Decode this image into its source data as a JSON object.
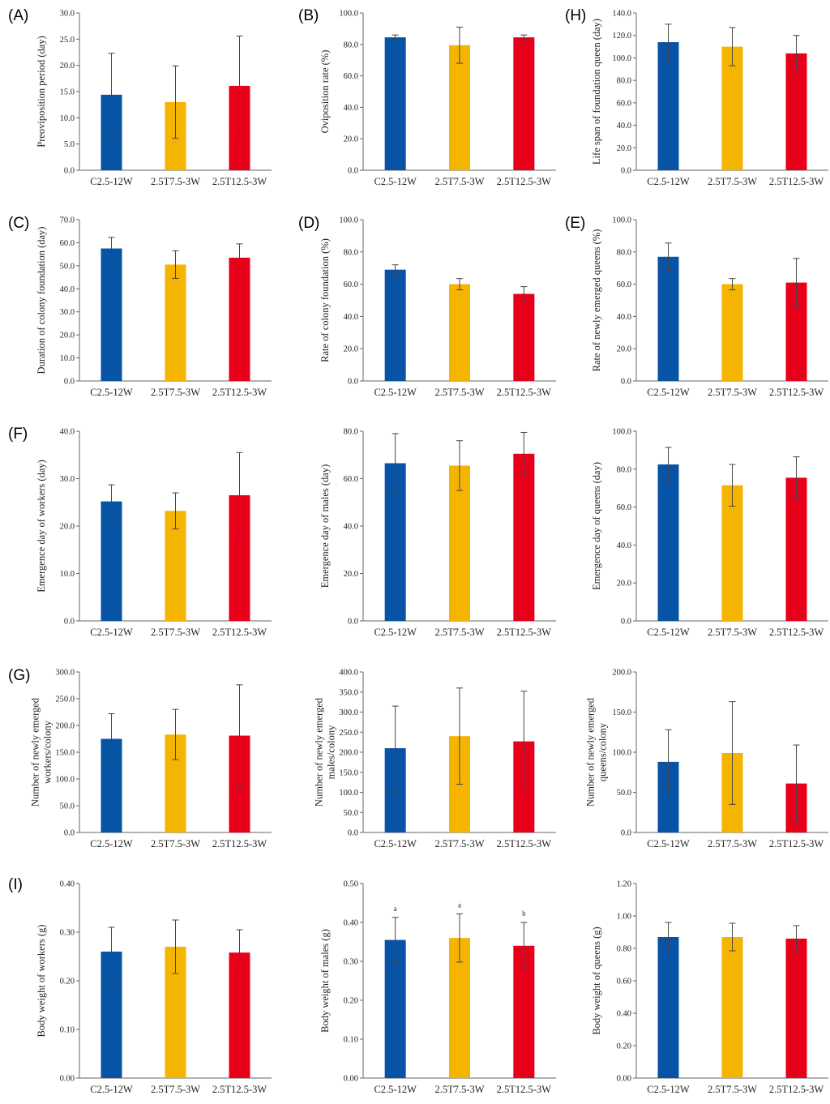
{
  "figure": {
    "categories": [
      "C2.5-12W",
      "2.5T7.5-3W",
      "2.5T12.5-3W"
    ],
    "colors": [
      "#0753a6",
      "#f5b400",
      "#e8001b"
    ],
    "charts": [
      {
        "letter": "(A)",
        "ylabel": [
          "Preoviposition period (day)"
        ],
        "ylim": [
          0,
          30
        ],
        "step": 5,
        "decimals": 1,
        "values": [
          14.4,
          13.0,
          16.1
        ],
        "errors": [
          7.9,
          6.9,
          9.5
        ],
        "letters": []
      },
      {
        "letter": "(B)",
        "ylabel": [
          "Oviposition rate (%)"
        ],
        "ylim": [
          0,
          100
        ],
        "step": 20,
        "decimals": 1,
        "values": [
          84.5,
          79.5,
          84.5
        ],
        "errors": [
          1.5,
          11.5,
          1.5
        ],
        "letters": []
      },
      {
        "letter": "(H)",
        "ylabel": [
          "Life span of foundation queen (day)"
        ],
        "ylim": [
          0,
          140
        ],
        "step": 20,
        "decimals": 1,
        "values": [
          114,
          110,
          104
        ],
        "errors": [
          16,
          17,
          16
        ],
        "letters": []
      },
      {
        "letter": "(C)",
        "ylabel": [
          "Duration of colony foundation (day)"
        ],
        "ylim": [
          0,
          70
        ],
        "step": 10,
        "decimals": 1,
        "values": [
          57.5,
          50.5,
          53.5
        ],
        "errors": [
          4.8,
          6.0,
          6.0
        ],
        "letters": []
      },
      {
        "letter": "(D)",
        "ylabel": [
          "Rate of colony foundation (%)"
        ],
        "ylim": [
          0,
          100
        ],
        "step": 20,
        "decimals": 1,
        "values": [
          69,
          60,
          54
        ],
        "errors": [
          3.0,
          3.5,
          4.5
        ],
        "letters": []
      },
      {
        "letter": "(E)",
        "ylabel": [
          "Rate of newly emerged queens (%)"
        ],
        "ylim": [
          0,
          100
        ],
        "step": 20,
        "decimals": 1,
        "values": [
          77,
          60,
          61
        ],
        "errors": [
          8.5,
          3.5,
          15
        ],
        "letters": []
      },
      {
        "letter": "(F)",
        "ylabel": [
          "Emergence day of workers (day)"
        ],
        "ylim": [
          0,
          40
        ],
        "step": 10,
        "decimals": 1,
        "values": [
          25.2,
          23.2,
          26.5
        ],
        "errors": [
          3.5,
          3.8,
          9.0
        ],
        "letters": []
      },
      {
        "letter": "",
        "ylabel": [
          "Emergence day of males (day)"
        ],
        "ylim": [
          0,
          80
        ],
        "step": 20,
        "decimals": 1,
        "values": [
          66.5,
          65.5,
          70.5
        ],
        "errors": [
          12.5,
          10.5,
          9.0
        ],
        "letters": []
      },
      {
        "letter": "",
        "ylabel": [
          "Emergence day of queens (day)"
        ],
        "ylim": [
          0,
          100
        ],
        "step": 20,
        "decimals": 1,
        "values": [
          82.5,
          71.5,
          75.5
        ],
        "errors": [
          9.0,
          11.0,
          11.0
        ],
        "letters": []
      },
      {
        "letter": "(G)",
        "ylabel": [
          "Number of newly emerged",
          "workers/colony"
        ],
        "ylim": [
          0,
          300
        ],
        "step": 50,
        "decimals": 1,
        "values": [
          175,
          183,
          181
        ],
        "errors": [
          47,
          47,
          95
        ],
        "letters": []
      },
      {
        "letter": "",
        "ylabel": [
          "Number of newly emerged",
          "males/colony"
        ],
        "ylim": [
          0,
          400
        ],
        "step": 50,
        "decimals": 1,
        "values": [
          210,
          240,
          227
        ],
        "errors": [
          105,
          120,
          125
        ],
        "letters": []
      },
      {
        "letter": "",
        "ylabel": [
          "Number of newly emerged",
          "queens/colony"
        ],
        "ylim": [
          0,
          200
        ],
        "step": 50,
        "decimals": 1,
        "values": [
          88,
          99,
          61
        ],
        "errors": [
          40,
          64,
          48
        ],
        "letters": []
      },
      {
        "letter": "(I)",
        "ylabel": [
          "Body weight of workers (g)"
        ],
        "ylim": [
          0,
          0.4
        ],
        "step": 0.1,
        "decimals": 2,
        "values": [
          0.26,
          0.27,
          0.258
        ],
        "errors": [
          0.05,
          0.055,
          0.047
        ],
        "letters": []
      },
      {
        "letter": "",
        "ylabel": [
          "Body weight of males (g)"
        ],
        "ylim": [
          0,
          0.5
        ],
        "step": 0.1,
        "decimals": 2,
        "values": [
          0.355,
          0.36,
          0.34
        ],
        "errors": [
          0.058,
          0.062,
          0.06
        ],
        "letters": [
          "a",
          "a",
          "b"
        ]
      },
      {
        "letter": "",
        "ylabel": [
          "Body weight of queens (g)"
        ],
        "ylim": [
          0,
          1.2
        ],
        "step": 0.2,
        "decimals": 2,
        "values": [
          0.87,
          0.87,
          0.86
        ],
        "errors": [
          0.09,
          0.085,
          0.08
        ],
        "letters": []
      }
    ]
  },
  "chart_data": [
    {
      "type": "bar",
      "title": "(A)",
      "xlabel": "",
      "ylabel": "Preoviposition period (day)",
      "categories": [
        "C2.5-12W",
        "2.5T7.5-3W",
        "2.5T12.5-3W"
      ],
      "values": [
        14.4,
        13.0,
        16.1
      ],
      "error": [
        7.9,
        6.9,
        9.5
      ],
      "ylim": [
        0,
        30
      ]
    },
    {
      "type": "bar",
      "title": "(B)",
      "xlabel": "",
      "ylabel": "Oviposition rate (%)",
      "categories": [
        "C2.5-12W",
        "2.5T7.5-3W",
        "2.5T12.5-3W"
      ],
      "values": [
        84.5,
        79.5,
        84.5
      ],
      "error": [
        1.5,
        11.5,
        1.5
      ],
      "ylim": [
        0,
        100
      ]
    },
    {
      "type": "bar",
      "title": "(H)",
      "xlabel": "",
      "ylabel": "Life span of foundation queen (day)",
      "categories": [
        "C2.5-12W",
        "2.5T7.5-3W",
        "2.5T12.5-3W"
      ],
      "values": [
        114,
        110,
        104
      ],
      "error": [
        16,
        17,
        16
      ],
      "ylim": [
        0,
        140
      ]
    },
    {
      "type": "bar",
      "title": "(C)",
      "xlabel": "",
      "ylabel": "Duration of colony foundation (day)",
      "categories": [
        "C2.5-12W",
        "2.5T7.5-3W",
        "2.5T12.5-3W"
      ],
      "values": [
        57.5,
        50.5,
        53.5
      ],
      "error": [
        4.8,
        6.0,
        6.0
      ],
      "ylim": [
        0,
        70
      ]
    },
    {
      "type": "bar",
      "title": "(D)",
      "xlabel": "",
      "ylabel": "Rate of colony foundation (%)",
      "categories": [
        "C2.5-12W",
        "2.5T7.5-3W",
        "2.5T12.5-3W"
      ],
      "values": [
        69,
        60,
        54
      ],
      "error": [
        3.0,
        3.5,
        4.5
      ],
      "ylim": [
        0,
        100
      ]
    },
    {
      "type": "bar",
      "title": "(E)",
      "xlabel": "",
      "ylabel": "Rate of newly emerged queens (%)",
      "categories": [
        "C2.5-12W",
        "2.5T7.5-3W",
        "2.5T12.5-3W"
      ],
      "values": [
        77,
        60,
        61
      ],
      "error": [
        8.5,
        3.5,
        15
      ],
      "ylim": [
        0,
        100
      ]
    },
    {
      "type": "bar",
      "title": "(F)",
      "xlabel": "",
      "ylabel": "Emergence day of workers (day)",
      "categories": [
        "C2.5-12W",
        "2.5T7.5-3W",
        "2.5T12.5-3W"
      ],
      "values": [
        25.2,
        23.2,
        26.5
      ],
      "error": [
        3.5,
        3.8,
        9.0
      ],
      "ylim": [
        0,
        40
      ]
    },
    {
      "type": "bar",
      "title": "",
      "xlabel": "",
      "ylabel": "Emergence day of males (day)",
      "categories": [
        "C2.5-12W",
        "2.5T7.5-3W",
        "2.5T12.5-3W"
      ],
      "values": [
        66.5,
        65.5,
        70.5
      ],
      "error": [
        12.5,
        10.5,
        9.0
      ],
      "ylim": [
        0,
        80
      ]
    },
    {
      "type": "bar",
      "title": "",
      "xlabel": "",
      "ylabel": "Emergence day of queens (day)",
      "categories": [
        "C2.5-12W",
        "2.5T7.5-3W",
        "2.5T12.5-3W"
      ],
      "values": [
        82.5,
        71.5,
        75.5
      ],
      "error": [
        9.0,
        11.0,
        11.0
      ],
      "ylim": [
        0,
        100
      ]
    },
    {
      "type": "bar",
      "title": "(G)",
      "xlabel": "",
      "ylabel": "Number of newly emerged workers/colony",
      "categories": [
        "C2.5-12W",
        "2.5T7.5-3W",
        "2.5T12.5-3W"
      ],
      "values": [
        175,
        183,
        181
      ],
      "error": [
        47,
        47,
        95
      ],
      "ylim": [
        0,
        300
      ]
    },
    {
      "type": "bar",
      "title": "",
      "xlabel": "",
      "ylabel": "Number of newly emerged males/colony",
      "categories": [
        "C2.5-12W",
        "2.5T7.5-3W",
        "2.5T12.5-3W"
      ],
      "values": [
        210,
        240,
        227
      ],
      "error": [
        105,
        120,
        125
      ],
      "ylim": [
        0,
        400
      ]
    },
    {
      "type": "bar",
      "title": "",
      "xlabel": "",
      "ylabel": "Number of newly emerged queens/colony",
      "categories": [
        "C2.5-12W",
        "2.5T7.5-3W",
        "2.5T12.5-3W"
      ],
      "values": [
        88,
        99,
        61
      ],
      "error": [
        40,
        64,
        48
      ],
      "ylim": [
        0,
        200
      ]
    },
    {
      "type": "bar",
      "title": "(I)",
      "xlabel": "",
      "ylabel": "Body weight of workers (g)",
      "categories": [
        "C2.5-12W",
        "2.5T7.5-3W",
        "2.5T12.5-3W"
      ],
      "values": [
        0.26,
        0.27,
        0.258
      ],
      "error": [
        0.05,
        0.055,
        0.047
      ],
      "ylim": [
        0,
        0.4
      ]
    },
    {
      "type": "bar",
      "title": "",
      "xlabel": "",
      "ylabel": "Body weight of males (g)",
      "categories": [
        "C2.5-12W",
        "2.5T7.5-3W",
        "2.5T12.5-3W"
      ],
      "values": [
        0.355,
        0.36,
        0.34
      ],
      "error": [
        0.058,
        0.062,
        0.06
      ],
      "significance": [
        "a",
        "a",
        "b"
      ],
      "ylim": [
        0,
        0.5
      ]
    },
    {
      "type": "bar",
      "title": "",
      "xlabel": "",
      "ylabel": "Body weight of queens (g)",
      "categories": [
        "C2.5-12W",
        "2.5T7.5-3W",
        "2.5T12.5-3W"
      ],
      "values": [
        0.87,
        0.87,
        0.86
      ],
      "error": [
        0.09,
        0.085,
        0.08
      ],
      "ylim": [
        0,
        1.2
      ]
    }
  ]
}
